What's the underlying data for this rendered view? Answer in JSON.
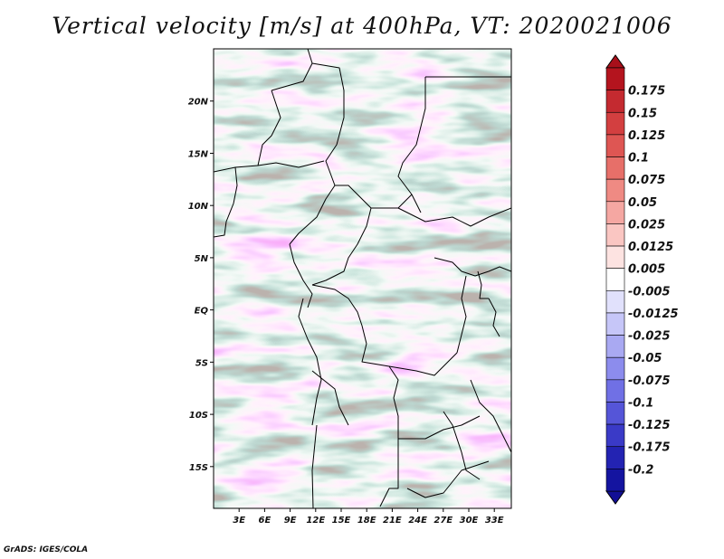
{
  "title": "Vertical velocity [m/s] at 400hPa, VT: 2020021006",
  "credit": "GrADS: IGES/COLA",
  "map": {
    "variable": "Vertical velocity",
    "units": "m/s",
    "level": "400hPa",
    "valid_time": "2020021006",
    "lon_range": [
      0,
      35
    ],
    "lat_range": [
      -19,
      25
    ],
    "lon_ticks": [
      {
        "label": "3E",
        "value": 3
      },
      {
        "label": "6E",
        "value": 6
      },
      {
        "label": "9E",
        "value": 9
      },
      {
        "label": "12E",
        "value": 12
      },
      {
        "label": "15E",
        "value": 15
      },
      {
        "label": "18E",
        "value": 18
      },
      {
        "label": "21E",
        "value": 21
      },
      {
        "label": "24E",
        "value": 24
      },
      {
        "label": "27E",
        "value": 27
      },
      {
        "label": "30E",
        "value": 30
      },
      {
        "label": "33E",
        "value": 33
      }
    ],
    "lat_ticks": [
      {
        "label": "20N",
        "value": 20
      },
      {
        "label": "15N",
        "value": 15
      },
      {
        "label": "10N",
        "value": 10
      },
      {
        "label": "5N",
        "value": 5
      },
      {
        "label": "EQ",
        "value": 0
      },
      {
        "label": "5S",
        "value": -5
      },
      {
        "label": "10S",
        "value": -10
      },
      {
        "label": "15S",
        "value": -15
      }
    ]
  },
  "colorbar": {
    "levels": [
      "0.175",
      "0.15",
      "0.125",
      "0.1",
      "0.075",
      "0.05",
      "0.025",
      "0.0125",
      "0.005",
      "-0.005",
      "-0.0125",
      "-0.025",
      "-0.05",
      "-0.075",
      "-0.1",
      "-0.125",
      "-0.175",
      "-0.2"
    ],
    "colors": [
      "#b4141e",
      "#c42a30",
      "#d33f40",
      "#de5653",
      "#e76f69",
      "#ef8a83",
      "#f5a7a2",
      "#fac6c2",
      "#fde3e1",
      "#ffffff",
      "#e1e1fc",
      "#c6c6f8",
      "#a9a9f2",
      "#8c8ced",
      "#7070e5",
      "#5555d8",
      "#3a3ac7",
      "#2323b2",
      "#1414a0"
    ],
    "top_color": "#a80f1a",
    "bottom_color": "#120f96"
  }
}
